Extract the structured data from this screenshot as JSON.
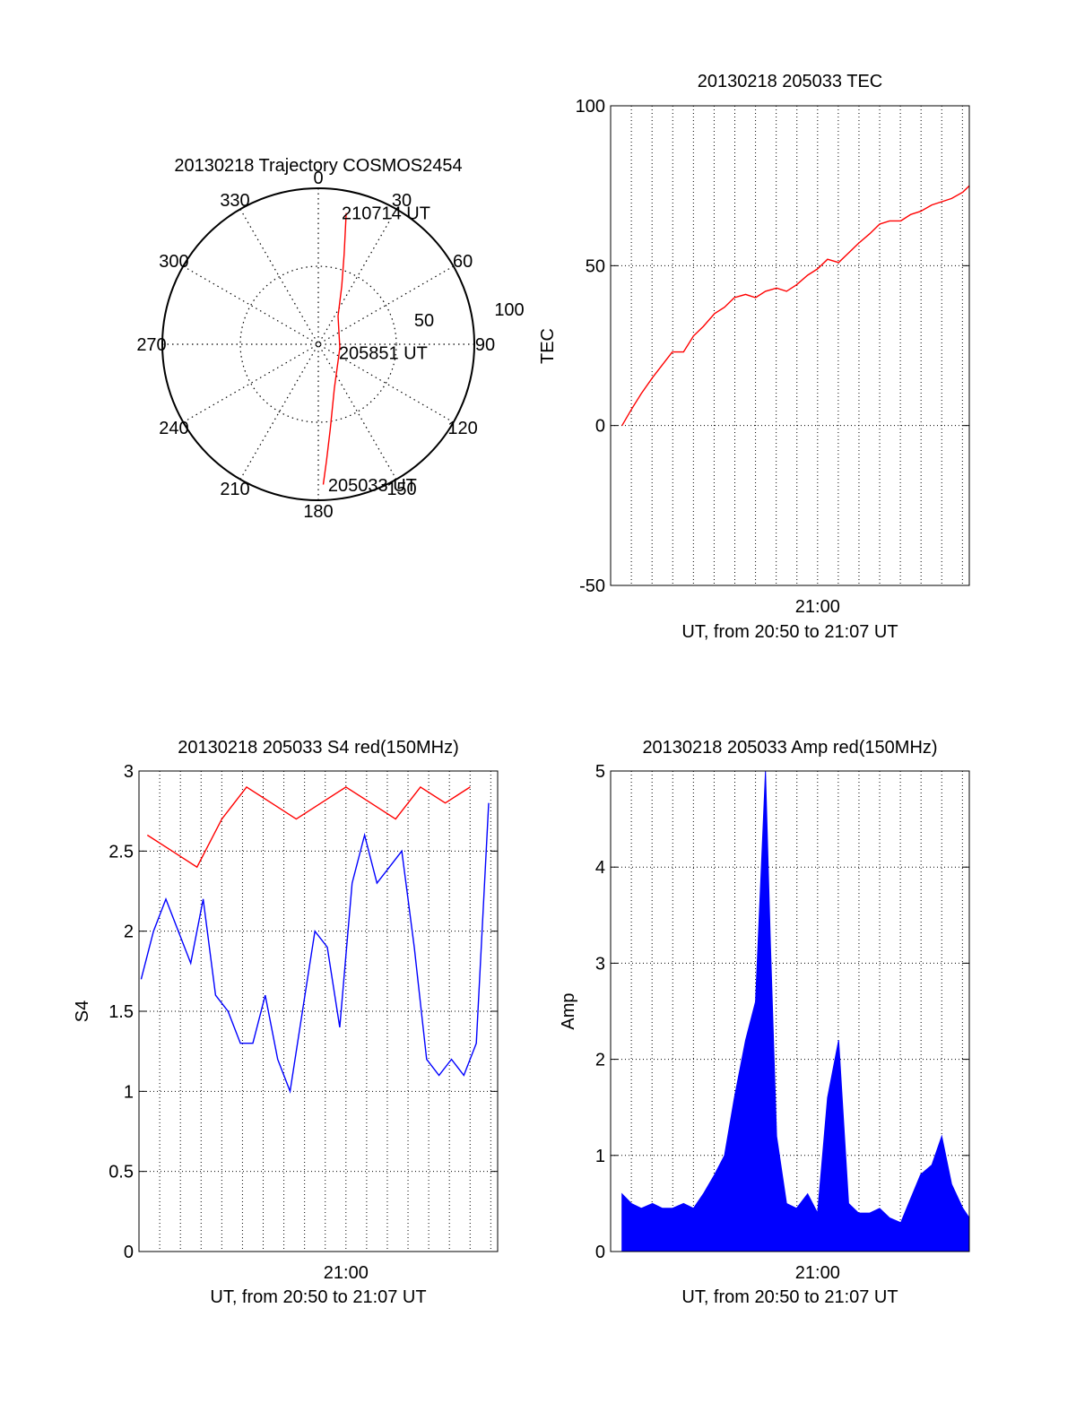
{
  "chart_data": [
    {
      "type": "polar",
      "title": "20130218 Trajectory COSMOS2454",
      "angle_ticks": [
        0,
        30,
        60,
        90,
        120,
        150,
        180,
        210,
        240,
        270,
        300,
        330
      ],
      "radial_labels": [
        "50",
        "100"
      ],
      "rlim": [
        0,
        100
      ],
      "grid": true,
      "series": [
        {
          "color": "#ff0000",
          "points": [
            {
              "az": 12,
              "r": 86
            },
            {
              "az": 16,
              "r": 60
            },
            {
              "az": 22,
              "r": 40
            },
            {
              "az": 35,
              "r": 22
            },
            {
              "az": 100,
              "r": 14
            },
            {
              "az": 160,
              "r": 30
            },
            {
              "az": 172,
              "r": 55
            },
            {
              "az": 176,
              "r": 75
            },
            {
              "az": 178,
              "r": 90
            }
          ]
        }
      ],
      "annotations": [
        {
          "text": "210714 UT",
          "az": 10,
          "r": 86
        },
        {
          "text": "205851 UT",
          "az": 110,
          "r": 14
        },
        {
          "text": "205033 UT",
          "az": 176,
          "r": 90
        }
      ]
    },
    {
      "type": "line",
      "title": "20130218 205033 TEC",
      "xlabel": "UT, from 20:50 to 21:07 UT",
      "ylabel": "TEC",
      "xlim": [
        20.8333,
        21.1222
      ],
      "ylim": [
        -50,
        100
      ],
      "x_ticks": [
        {
          "x": 21.0,
          "label": "21:00"
        }
      ],
      "y_ticks": [
        -50,
        0,
        50,
        100
      ],
      "grid": true,
      "series": [
        {
          "color": "#ff0000",
          "x": [
            20.8425,
            20.85,
            20.858,
            20.867,
            20.875,
            20.883,
            20.892,
            20.9,
            20.908,
            20.917,
            20.925,
            20.933,
            20.942,
            20.95,
            20.958,
            20.967,
            20.975,
            20.983,
            20.992,
            21.0,
            21.008,
            21.017,
            21.025,
            21.033,
            21.042,
            21.05,
            21.058,
            21.067,
            21.075,
            21.083,
            21.092,
            21.1,
            21.108,
            21.117,
            21.1222
          ],
          "y": [
            0,
            5,
            10,
            15,
            19,
            23,
            23,
            28,
            31,
            35,
            37,
            40,
            41,
            40,
            42,
            43,
            42,
            44,
            47,
            49,
            52,
            51,
            54,
            57,
            60,
            63,
            64,
            64,
            66,
            67,
            69,
            70,
            71,
            73,
            75
          ]
        }
      ]
    },
    {
      "type": "line",
      "title": "20130218 205033 S4 red(150MHz)",
      "xlabel": "UT, from 20:50 to 21:07 UT",
      "ylabel": "S4",
      "xlim": [
        20.8333,
        21.1222
      ],
      "ylim": [
        0,
        3
      ],
      "x_ticks": [
        {
          "x": 21.0,
          "label": "21:00"
        }
      ],
      "y_ticks": [
        0,
        0.5,
        1,
        1.5,
        2,
        2.5,
        3
      ],
      "y_tick_labels": [
        "0",
        "0.5",
        "1",
        "1.5",
        "2",
        "2.5",
        "3"
      ],
      "grid": true,
      "series": [
        {
          "color": "#ff0000",
          "x": [
            20.84,
            20.86,
            20.88,
            20.9,
            20.92,
            20.94,
            20.96,
            20.98,
            21.0,
            21.02,
            21.04,
            21.06,
            21.08,
            21.1
          ],
          "y": [
            2.6,
            2.5,
            2.4,
            2.7,
            2.9,
            2.8,
            2.7,
            2.8,
            2.9,
            2.8,
            2.7,
            2.9,
            2.8,
            2.9
          ]
        },
        {
          "color": "#0000ff",
          "x": [
            20.835,
            20.845,
            20.855,
            20.865,
            20.875,
            20.885,
            20.895,
            20.905,
            20.915,
            20.925,
            20.935,
            20.945,
            20.955,
            20.965,
            20.975,
            20.985,
            20.995,
            21.005,
            21.015,
            21.025,
            21.035,
            21.045,
            21.055,
            21.065,
            21.075,
            21.085,
            21.095,
            21.105,
            21.115
          ],
          "y": [
            1.7,
            2.0,
            2.2,
            2.0,
            1.8,
            2.2,
            1.6,
            1.5,
            1.3,
            1.3,
            1.6,
            1.2,
            1.0,
            1.5,
            2.0,
            1.9,
            1.4,
            2.3,
            2.6,
            2.3,
            2.4,
            2.5,
            1.9,
            1.2,
            1.1,
            1.2,
            1.1,
            1.3,
            2.8
          ]
        }
      ]
    },
    {
      "type": "bar",
      "title": "20130218 205033 Amp red(150MHz)",
      "xlabel": "UT, from 20:50 to 21:07 UT",
      "ylabel": "Amp",
      "xlim": [
        20.8333,
        21.1222
      ],
      "ylim": [
        0,
        5
      ],
      "x_ticks": [
        {
          "x": 21.0,
          "label": "21:00"
        }
      ],
      "y_ticks": [
        0,
        1,
        2,
        3,
        4,
        5
      ],
      "grid": true,
      "series": [
        {
          "color": "#0000ff",
          "x": [
            20.8425,
            20.85,
            20.858,
            20.867,
            20.875,
            20.883,
            20.892,
            20.9,
            20.908,
            20.917,
            20.925,
            20.933,
            20.942,
            20.95,
            20.958,
            20.962,
            20.967,
            20.975,
            20.983,
            20.992,
            21.0,
            21.008,
            21.017,
            21.025,
            21.033,
            21.042,
            21.05,
            21.058,
            21.067,
            21.075,
            21.083,
            21.092,
            21.1,
            21.108,
            21.117,
            21.1222
          ],
          "y": [
            0.6,
            0.5,
            0.45,
            0.5,
            0.45,
            0.45,
            0.5,
            0.45,
            0.6,
            0.8,
            1.0,
            1.6,
            2.2,
            2.6,
            5.0,
            3.2,
            1.2,
            0.5,
            0.45,
            0.6,
            0.4,
            1.6,
            2.2,
            0.5,
            0.4,
            0.4,
            0.45,
            0.35,
            0.3,
            0.55,
            0.8,
            0.9,
            1.2,
            0.7,
            0.45,
            0.35
          ]
        }
      ]
    }
  ]
}
